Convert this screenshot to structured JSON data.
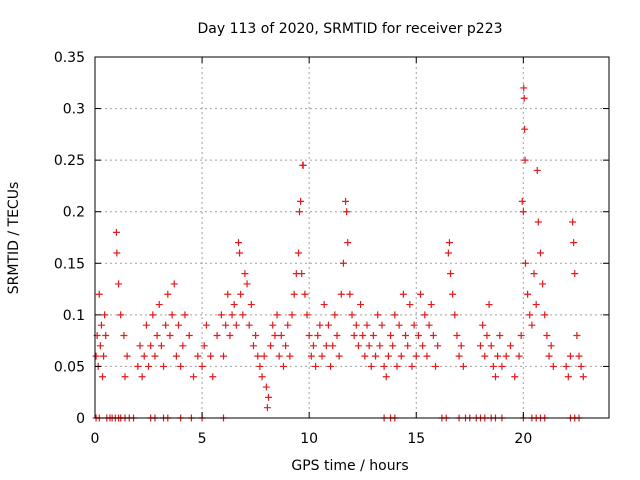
{
  "chart_data": {
    "type": "scatter",
    "title": "Day 113 of 2020, SRMTID for receiver p223",
    "xlabel": "GPS time / hours",
    "ylabel": "SRMTID / TECUs",
    "xlim": [
      0,
      24
    ],
    "ylim": [
      0,
      0.35
    ],
    "x_ticks": [
      0,
      5,
      10,
      15,
      20
    ],
    "x_tick_labels": [
      "0",
      "5",
      "10",
      "15",
      "20"
    ],
    "y_ticks": [
      0,
      0.05,
      0.1,
      0.15,
      0.2,
      0.25,
      0.3,
      0.35
    ],
    "y_tick_labels": [
      "0",
      "0.05",
      "0.1",
      "0.15",
      "0.2",
      "0.25",
      "0.3",
      "0.35"
    ],
    "grid": true,
    "marker": "+",
    "series": [
      {
        "name": "SRMTID",
        "color": "#e41a1c",
        "points": [
          [
            0.05,
            0.06
          ],
          [
            0.1,
            0.08
          ],
          [
            0.15,
            0.05
          ],
          [
            0.2,
            0.12
          ],
          [
            0.25,
            0.07
          ],
          [
            0.3,
            0.09
          ],
          [
            0.35,
            0.04
          ],
          [
            0.4,
            0.06
          ],
          [
            0.45,
            0.1
          ],
          [
            0.5,
            0.08
          ],
          [
            1.0,
            0.18
          ],
          [
            1.02,
            0.16
          ],
          [
            1.1,
            0.13
          ],
          [
            1.2,
            0.1
          ],
          [
            1.35,
            0.08
          ],
          [
            1.5,
            0.06
          ],
          [
            1.4,
            0.04
          ],
          [
            2.0,
            0.05
          ],
          [
            2.1,
            0.07
          ],
          [
            2.2,
            0.04
          ],
          [
            2.3,
            0.06
          ],
          [
            2.4,
            0.09
          ],
          [
            2.5,
            0.05
          ],
          [
            2.6,
            0.07
          ],
          [
            2.7,
            0.1
          ],
          [
            2.8,
            0.06
          ],
          [
            2.9,
            0.08
          ],
          [
            3.0,
            0.11
          ],
          [
            3.1,
            0.07
          ],
          [
            3.2,
            0.05
          ],
          [
            3.3,
            0.09
          ],
          [
            3.4,
            0.12
          ],
          [
            3.5,
            0.08
          ],
          [
            3.6,
            0.1
          ],
          [
            3.7,
            0.13
          ],
          [
            3.8,
            0.06
          ],
          [
            3.9,
            0.09
          ],
          [
            4.0,
            0.05
          ],
          [
            4.1,
            0.07
          ],
          [
            4.2,
            0.1
          ],
          [
            4.4,
            0.08
          ],
          [
            4.6,
            0.04
          ],
          [
            4.8,
            0.06
          ],
          [
            5.0,
            0.05
          ],
          [
            5.1,
            0.07
          ],
          [
            5.2,
            0.09
          ],
          [
            5.4,
            0.06
          ],
          [
            5.5,
            0.04
          ],
          [
            5.7,
            0.08
          ],
          [
            5.9,
            0.1
          ],
          [
            6.0,
            0.06
          ],
          [
            6.1,
            0.09
          ],
          [
            6.2,
            0.12
          ],
          [
            6.3,
            0.08
          ],
          [
            6.4,
            0.1
          ],
          [
            6.5,
            0.11
          ],
          [
            6.6,
            0.09
          ],
          [
            6.7,
            0.17
          ],
          [
            6.75,
            0.16
          ],
          [
            6.8,
            0.12
          ],
          [
            6.9,
            0.1
          ],
          [
            7.0,
            0.14
          ],
          [
            7.1,
            0.13
          ],
          [
            7.2,
            0.09
          ],
          [
            7.3,
            0.11
          ],
          [
            7.4,
            0.07
          ],
          [
            7.5,
            0.08
          ],
          [
            7.6,
            0.06
          ],
          [
            7.7,
            0.05
          ],
          [
            7.8,
            0.04
          ],
          [
            7.9,
            0.06
          ],
          [
            8.0,
            0.03
          ],
          [
            8.05,
            0.01
          ],
          [
            8.1,
            0.02
          ],
          [
            8.2,
            0.07
          ],
          [
            8.3,
            0.09
          ],
          [
            8.4,
            0.08
          ],
          [
            8.5,
            0.1
          ],
          [
            8.6,
            0.06
          ],
          [
            8.7,
            0.08
          ],
          [
            8.8,
            0.05
          ],
          [
            8.9,
            0.07
          ],
          [
            9.0,
            0.09
          ],
          [
            9.1,
            0.06
          ],
          [
            9.2,
            0.1
          ],
          [
            9.3,
            0.12
          ],
          [
            9.4,
            0.14
          ],
          [
            9.5,
            0.16
          ],
          [
            9.55,
            0.2
          ],
          [
            9.6,
            0.21
          ],
          [
            9.65,
            0.14
          ],
          [
            9.7,
            0.245
          ],
          [
            9.72,
            0.245
          ],
          [
            9.8,
            0.12
          ],
          [
            9.9,
            0.1
          ],
          [
            10.0,
            0.08
          ],
          [
            10.1,
            0.06
          ],
          [
            10.2,
            0.07
          ],
          [
            10.3,
            0.05
          ],
          [
            10.4,
            0.08
          ],
          [
            10.5,
            0.09
          ],
          [
            10.6,
            0.06
          ],
          [
            10.7,
            0.11
          ],
          [
            10.8,
            0.07
          ],
          [
            10.9,
            0.09
          ],
          [
            11.0,
            0.05
          ],
          [
            11.1,
            0.07
          ],
          [
            11.2,
            0.1
          ],
          [
            11.3,
            0.08
          ],
          [
            11.4,
            0.06
          ],
          [
            11.5,
            0.12
          ],
          [
            11.6,
            0.15
          ],
          [
            11.7,
            0.21
          ],
          [
            11.75,
            0.2
          ],
          [
            11.8,
            0.17
          ],
          [
            11.9,
            0.12
          ],
          [
            12.0,
            0.1
          ],
          [
            12.1,
            0.08
          ],
          [
            12.2,
            0.09
          ],
          [
            12.3,
            0.07
          ],
          [
            12.4,
            0.11
          ],
          [
            12.5,
            0.08
          ],
          [
            12.6,
            0.06
          ],
          [
            12.7,
            0.09
          ],
          [
            12.8,
            0.07
          ],
          [
            12.9,
            0.05
          ],
          [
            13.0,
            0.08
          ],
          [
            13.1,
            0.06
          ],
          [
            13.2,
            0.1
          ],
          [
            13.3,
            0.07
          ],
          [
            13.4,
            0.09
          ],
          [
            13.5,
            0.05
          ],
          [
            13.6,
            0.04
          ],
          [
            13.7,
            0.06
          ],
          [
            13.8,
            0.08
          ],
          [
            13.9,
            0.07
          ],
          [
            14.0,
            0.1
          ],
          [
            14.1,
            0.05
          ],
          [
            14.2,
            0.09
          ],
          [
            14.3,
            0.06
          ],
          [
            14.4,
            0.12
          ],
          [
            14.5,
            0.08
          ],
          [
            14.6,
            0.07
          ],
          [
            14.7,
            0.11
          ],
          [
            14.8,
            0.05
          ],
          [
            14.9,
            0.09
          ],
          [
            15.0,
            0.06
          ],
          [
            15.1,
            0.08
          ],
          [
            15.2,
            0.12
          ],
          [
            15.3,
            0.07
          ],
          [
            15.4,
            0.1
          ],
          [
            15.5,
            0.06
          ],
          [
            15.6,
            0.09
          ],
          [
            15.7,
            0.11
          ],
          [
            15.8,
            0.08
          ],
          [
            15.9,
            0.05
          ],
          [
            16.0,
            0.07
          ],
          [
            16.5,
            0.16
          ],
          [
            16.55,
            0.17
          ],
          [
            16.6,
            0.14
          ],
          [
            16.7,
            0.12
          ],
          [
            16.8,
            0.1
          ],
          [
            16.9,
            0.08
          ],
          [
            17.0,
            0.06
          ],
          [
            17.1,
            0.07
          ],
          [
            17.2,
            0.05
          ],
          [
            18.0,
            0.07
          ],
          [
            18.1,
            0.09
          ],
          [
            18.2,
            0.06
          ],
          [
            18.3,
            0.08
          ],
          [
            18.4,
            0.11
          ],
          [
            18.5,
            0.07
          ],
          [
            18.6,
            0.05
          ],
          [
            18.7,
            0.04
          ],
          [
            18.8,
            0.06
          ],
          [
            18.9,
            0.08
          ],
          [
            19.0,
            0.05
          ],
          [
            19.2,
            0.06
          ],
          [
            19.4,
            0.07
          ],
          [
            19.6,
            0.04
          ],
          [
            19.8,
            0.06
          ],
          [
            19.9,
            0.08
          ],
          [
            19.95,
            0.21
          ],
          [
            20.0,
            0.2
          ],
          [
            20.02,
            0.32
          ],
          [
            20.04,
            0.31
          ],
          [
            20.06,
            0.28
          ],
          [
            20.08,
            0.25
          ],
          [
            20.1,
            0.15
          ],
          [
            20.2,
            0.12
          ],
          [
            20.3,
            0.1
          ],
          [
            20.4,
            0.09
          ],
          [
            20.5,
            0.14
          ],
          [
            20.6,
            0.11
          ],
          [
            20.65,
            0.24
          ],
          [
            20.7,
            0.19
          ],
          [
            20.8,
            0.16
          ],
          [
            20.9,
            0.13
          ],
          [
            21.0,
            0.1
          ],
          [
            21.1,
            0.08
          ],
          [
            21.2,
            0.06
          ],
          [
            21.3,
            0.07
          ],
          [
            21.4,
            0.05
          ],
          [
            22.0,
            0.05
          ],
          [
            22.1,
            0.04
          ],
          [
            22.2,
            0.06
          ],
          [
            22.3,
            0.19
          ],
          [
            22.35,
            0.17
          ],
          [
            22.4,
            0.14
          ],
          [
            22.5,
            0.08
          ],
          [
            22.6,
            0.06
          ],
          [
            22.7,
            0.05
          ],
          [
            22.8,
            0.04
          ]
        ],
        "zero_points": [
          0.05,
          0.2,
          0.55,
          0.7,
          0.8,
          0.95,
          1.1,
          1.2,
          1.4,
          1.6,
          1.8,
          2.6,
          2.8,
          3.2,
          3.4,
          4.0,
          4.5,
          5.0,
          6.0,
          13.5,
          13.8,
          14.0,
          16.2,
          16.4,
          17.0,
          17.3,
          17.5,
          17.8,
          18.0,
          18.2,
          18.5,
          18.7,
          19.0,
          20.0,
          20.4,
          20.6,
          20.8,
          21.0,
          22.2,
          22.4,
          22.6
        ]
      }
    ]
  }
}
